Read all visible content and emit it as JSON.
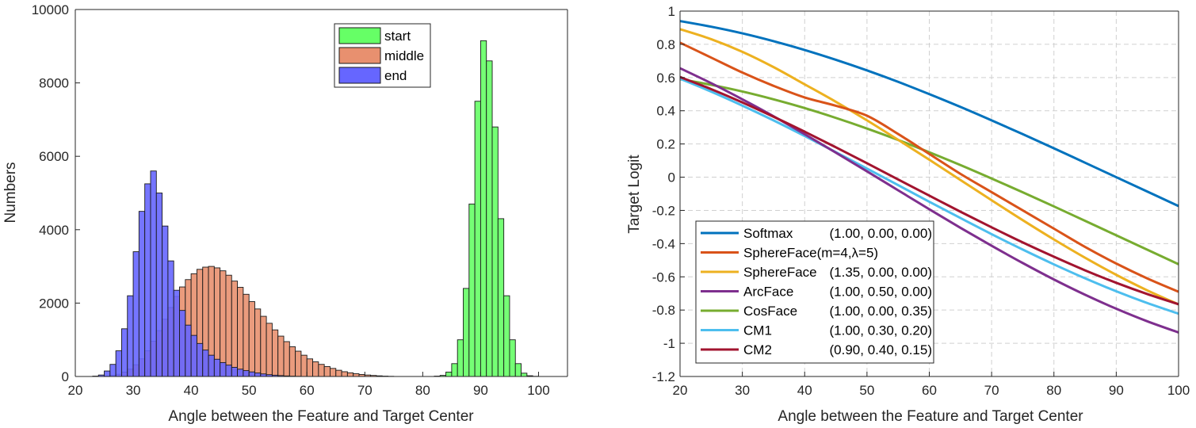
{
  "chart_data": [
    {
      "type": "histogram",
      "title": "",
      "xlabel": "Angle between the Feature and Target Center",
      "ylabel": "Numbers",
      "xlim": [
        20,
        105
      ],
      "ylim": [
        0,
        10000
      ],
      "xticks": [
        20,
        30,
        40,
        50,
        60,
        70,
        80,
        90,
        100
      ],
      "yticks": [
        0,
        2000,
        4000,
        6000,
        8000,
        10000
      ],
      "legend_position": "top-center",
      "bin_width": 1,
      "series": [
        {
          "name": "start",
          "color": "#66ff66",
          "bins_start": 82,
          "counts": [
            10,
            30,
            120,
            350,
            1000,
            2400,
            4700,
            7500,
            9150,
            8600,
            6800,
            4300,
            2200,
            1000,
            350,
            90,
            20,
            5
          ]
        },
        {
          "name": "middle",
          "color": "#e8906f",
          "bins_start": 25,
          "counts": [
            10,
            30,
            60,
            120,
            200,
            320,
            480,
            700,
            960,
            1250,
            1560,
            1880,
            2180,
            2440,
            2640,
            2800,
            2920,
            2980,
            3000,
            2960,
            2880,
            2760,
            2600,
            2430,
            2240,
            2040,
            1840,
            1640,
            1450,
            1270,
            1100,
            950,
            810,
            690,
            580,
            480,
            400,
            330,
            270,
            220,
            170,
            130,
            100,
            75,
            55,
            40,
            28,
            18,
            10,
            5
          ]
        },
        {
          "name": "end",
          "color": "#6666ff",
          "bins_start": 23,
          "counts": [
            10,
            40,
            150,
            330,
            700,
            1300,
            2200,
            3400,
            4500,
            5250,
            5600,
            5000,
            4100,
            3150,
            2350,
            1800,
            1400,
            1120,
            900,
            720,
            580,
            470,
            380,
            310,
            250,
            200,
            160,
            125,
            95,
            70,
            50,
            35,
            25,
            15,
            8,
            4
          ]
        }
      ]
    },
    {
      "type": "line",
      "title": "",
      "xlabel": "Angle between the Feature and Target Center",
      "ylabel": "Target Logit",
      "xlim": [
        20,
        100
      ],
      "ylim": [
        -1.2,
        1
      ],
      "xticks": [
        20,
        30,
        40,
        50,
        60,
        70,
        80,
        90,
        100
      ],
      "yticks": [
        -1.2,
        -1,
        -0.8,
        -0.6,
        -0.4,
        -0.2,
        0,
        0.2,
        0.4,
        0.6,
        0.8,
        1
      ],
      "grid": true,
      "legend_position": "bottom-left",
      "x": [
        20,
        25,
        30,
        35,
        40,
        45,
        50,
        55,
        60,
        65,
        70,
        75,
        80,
        85,
        90,
        95,
        100
      ],
      "series": [
        {
          "name": "Softmax",
          "params": "(1.00, 0.00, 0.00)",
          "color": "#0072bd",
          "values": [
            0.94,
            0.906,
            0.866,
            0.819,
            0.766,
            0.707,
            0.643,
            0.574,
            0.5,
            0.423,
            0.342,
            0.259,
            0.174,
            0.087,
            0.0,
            -0.087,
            -0.174
          ]
        },
        {
          "name": "SphereFace(m=4,λ=5)",
          "params": "",
          "color": "#d95319",
          "values": [
            0.81,
            0.72,
            0.63,
            0.55,
            0.48,
            0.43,
            0.37,
            0.26,
            0.14,
            0.02,
            -0.09,
            -0.2,
            -0.31,
            -0.42,
            -0.52,
            -0.61,
            -0.69
          ]
        },
        {
          "name": "SphereFace",
          "params": "(1.35, 0.00, 0.00)",
          "color": "#edb120",
          "values": [
            0.891,
            0.831,
            0.755,
            0.663,
            0.559,
            0.454,
            0.342,
            0.225,
            0.105,
            -0.017,
            -0.139,
            -0.259,
            -0.375,
            -0.485,
            -0.588,
            -0.682,
            -0.766
          ]
        },
        {
          "name": "ArcFace",
          "params": "(1.00, 0.50, 0.00)",
          "color": "#7e2f8e",
          "values": [
            0.656,
            0.566,
            0.469,
            0.367,
            0.259,
            0.148,
            0.035,
            -0.079,
            -0.193,
            -0.305,
            -0.413,
            -0.517,
            -0.616,
            -0.708,
            -0.792,
            -0.868,
            -0.935
          ]
        },
        {
          "name": "CosFace",
          "params": "(1.00, 0.00, 0.35)",
          "color": "#77ac30",
          "values": [
            0.59,
            0.556,
            0.516,
            0.469,
            0.416,
            0.357,
            0.293,
            0.224,
            0.15,
            0.073,
            -0.008,
            -0.091,
            -0.176,
            -0.263,
            -0.35,
            -0.437,
            -0.524
          ]
        },
        {
          "name": "CM1",
          "params": "(1.00, 0.30, 0.20)",
          "color": "#4dbeee",
          "values": [
            0.593,
            0.515,
            0.431,
            0.342,
            0.248,
            0.151,
            0.052,
            -0.048,
            -0.148,
            -0.246,
            -0.343,
            -0.436,
            -0.525,
            -0.609,
            -0.687,
            -0.758,
            -0.822
          ]
        },
        {
          "name": "CM2",
          "params": "(0.90, 0.40, 0.15)",
          "color": "#a2142f",
          "values": [
            0.603,
            0.53,
            0.45,
            0.364,
            0.274,
            0.18,
            0.084,
            -0.014,
            -0.111,
            -0.208,
            -0.302,
            -0.393,
            -0.479,
            -0.561,
            -0.636,
            -0.704,
            -0.765
          ]
        }
      ]
    }
  ]
}
